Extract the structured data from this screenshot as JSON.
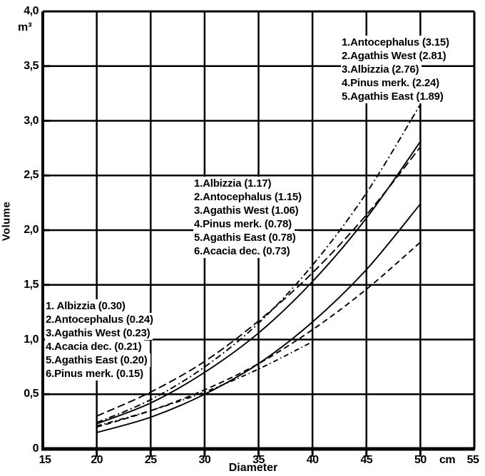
{
  "figure": {
    "background": "#ffffff",
    "ink": "#000000"
  },
  "axes": {
    "y_title": "Volume",
    "y_unit": "m³",
    "x_title": "Diameter",
    "x_unit": "cm",
    "y_tick_labels": [
      "4,0",
      "3,5",
      "3,0",
      "2,5",
      "2,0",
      "1,5",
      "1,0",
      "0,5",
      "0"
    ],
    "y_tick_values": [
      4.0,
      3.5,
      3.0,
      2.5,
      2.0,
      1.5,
      1.0,
      0.5,
      0
    ],
    "x_tick_labels": [
      "15",
      "20",
      "25",
      "30",
      "35",
      "40",
      "45",
      "50",
      "55"
    ],
    "x_tick_values": [
      15,
      20,
      25,
      30,
      35,
      40,
      45,
      50,
      55
    ]
  },
  "legends": {
    "top_right": {
      "items": [
        "1.Antocephalus (3.15)",
        "2.Agathis West (2.81)",
        "3.Albizzia (2.76)",
        "4.Pinus merk. (2.24)",
        "5.Agathis East (1.89)"
      ]
    },
    "middle": {
      "items": [
        "1.Albizzia (1.17)",
        "2.Antocephalus (1.15)",
        "3.Agathis West (1.06)",
        "4.Pinus merk. (0.78)",
        "5.Agathis East (0.78)",
        "6.Acacia dec. (0.73)"
      ]
    },
    "bottom_left": {
      "items": [
        "1. Albizzia (0.30)",
        "2.Antocephalus (0.24)",
        "3.Agathis West (0.23)",
        "4.Acacia dec. (0.21)",
        "5.Agathis East (0.20)",
        "6.Pinus merk. (0.15)"
      ]
    }
  },
  "chart_data": {
    "type": "line",
    "title": "",
    "xlabel": "Diameter",
    "ylabel": "Volume",
    "x_unit": "cm",
    "y_unit": "m³",
    "xlim": [
      15,
      55
    ],
    "ylim": [
      0,
      4.0
    ],
    "grid": true,
    "x_ticks": [
      15,
      20,
      25,
      30,
      35,
      40,
      45,
      50,
      55
    ],
    "y_ticks": [
      0,
      0.5,
      1.0,
      1.5,
      2.0,
      2.5,
      3.0,
      3.5,
      4.0
    ],
    "series": [
      {
        "name": "Antocephalus",
        "line_style": "dash-dot",
        "x": [
          20,
          25,
          30,
          35,
          40,
          45,
          50
        ],
        "y": [
          0.24,
          0.45,
          0.75,
          1.15,
          1.68,
          2.34,
          3.15
        ]
      },
      {
        "name": "Agathis West",
        "line_style": "solid",
        "x": [
          20,
          25,
          30,
          35,
          40,
          45,
          50
        ],
        "y": [
          0.23,
          0.42,
          0.7,
          1.06,
          1.53,
          2.11,
          2.81
        ]
      },
      {
        "name": "Albizzia",
        "line_style": "long-dash",
        "x": [
          20,
          25,
          30,
          35,
          40,
          45,
          50
        ],
        "y": [
          0.3,
          0.52,
          0.8,
          1.17,
          1.61,
          2.14,
          2.76
        ]
      },
      {
        "name": "Pinus merk.",
        "line_style": "solid",
        "x": [
          20,
          25,
          30,
          35,
          40,
          45,
          50
        ],
        "y": [
          0.15,
          0.29,
          0.5,
          0.78,
          1.16,
          1.64,
          2.24
        ]
      },
      {
        "name": "Agathis East",
        "line_style": "dash",
        "x": [
          20,
          25,
          30,
          35,
          40,
          45,
          50
        ],
        "y": [
          0.2,
          0.35,
          0.54,
          0.78,
          1.09,
          1.46,
          1.89
        ]
      },
      {
        "name": "Acacia dec.",
        "line_style": "dash-dot-dot",
        "x": [
          20,
          25,
          30,
          35,
          40
        ],
        "y": [
          0.21,
          0.35,
          0.52,
          0.73,
          0.98
        ]
      }
    ],
    "value_annotations": {
      "at_diameter_50": [
        "Antocephalus 3.15",
        "Agathis West 2.81",
        "Albizzia 2.76",
        "Pinus merk. 2.24",
        "Agathis East 1.89"
      ],
      "at_diameter_35": [
        "Albizzia 1.17",
        "Antocephalus 1.15",
        "Agathis West 1.06",
        "Pinus merk. 0.78",
        "Agathis East 0.78",
        "Acacia dec. 0.73"
      ],
      "at_diameter_20": [
        "Albizzia 0.30",
        "Antocephalus 0.24",
        "Agathis West 0.23",
        "Acacia dec. 0.21",
        "Agathis East 0.20",
        "Pinus merk. 0.15"
      ]
    }
  }
}
